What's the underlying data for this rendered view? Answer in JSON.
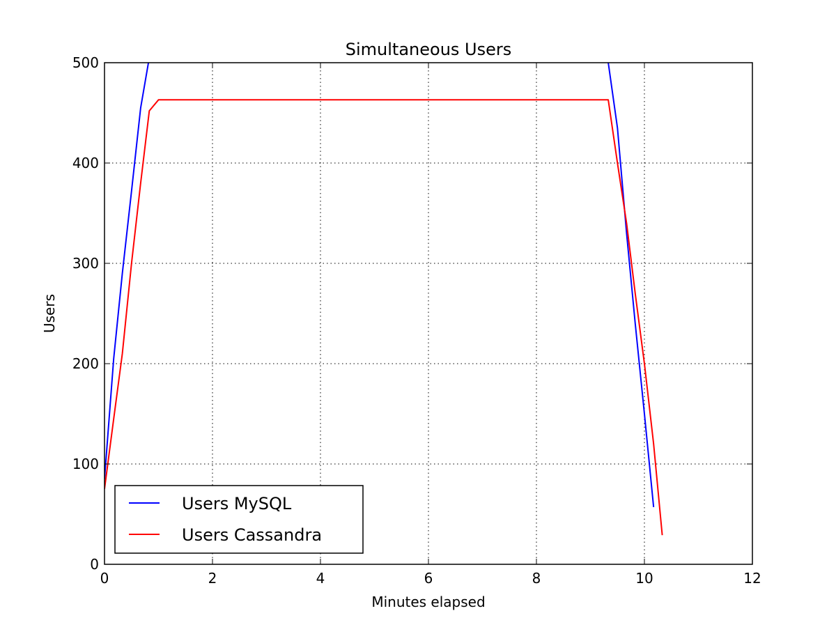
{
  "chart_data": {
    "type": "line",
    "title": "Simultaneous Users",
    "xlabel": "Minutes elapsed",
    "ylabel": "Users",
    "xlim": [
      0,
      12
    ],
    "ylim": [
      0,
      500
    ],
    "xticks": [
      "0",
      "2",
      "4",
      "6",
      "8",
      "10",
      "12"
    ],
    "yticks": [
      "0",
      "100",
      "200",
      "300",
      "400",
      "500"
    ],
    "grid": true,
    "legend_position": "lower-left",
    "series": [
      {
        "name": "Users MySQL",
        "color": "#0000ff",
        "x": [
          0,
          0.17,
          0.33,
          0.5,
          0.67,
          0.83,
          1.0,
          9.17,
          9.33,
          9.5,
          9.67,
          9.83,
          10.0,
          10.17
        ],
        "y": [
          85,
          205,
          290,
          372,
          455,
          505,
          510,
          510,
          500,
          435,
          330,
          240,
          150,
          57
        ]
      },
      {
        "name": "Users Cassandra",
        "color": "#ff0000",
        "x": [
          0,
          0.17,
          0.33,
          0.5,
          0.67,
          0.83,
          1.0,
          9.33,
          9.5,
          9.67,
          9.83,
          10.0,
          10.17,
          10.33
        ],
        "y": [
          75,
          145,
          210,
          300,
          380,
          452,
          463,
          463,
          400,
          340,
          270,
          200,
          120,
          29
        ]
      }
    ]
  }
}
